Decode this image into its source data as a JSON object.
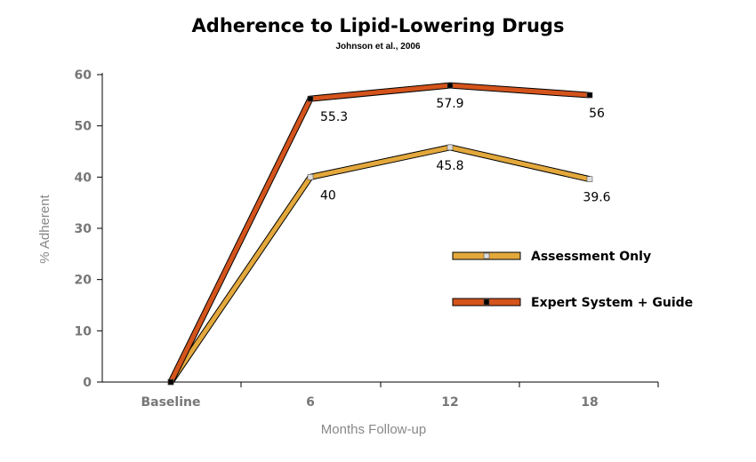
{
  "chart_data": {
    "type": "line",
    "title": "Adherence to Lipid-Lowering Drugs",
    "subtitle": "Johnson et al., 2006",
    "xlabel": "Months Follow-up",
    "ylabel": "% Adherent",
    "categories": [
      "Baseline",
      "6",
      "12",
      "18"
    ],
    "ylim": [
      0,
      60
    ],
    "yticks": [
      "0",
      "10",
      "20",
      "30",
      "40",
      "50",
      "60"
    ],
    "grid": false,
    "legend_position": "right",
    "series": [
      {
        "name": "Assessment Only",
        "values": [
          0,
          40,
          45.8,
          39.6
        ],
        "labels": [
          "",
          "40",
          "45.8",
          "39.6"
        ],
        "color": "#E3A83C",
        "marker_color": "#dddddd"
      },
      {
        "name": "Expert System + Guide",
        "values": [
          0,
          55.3,
          57.9,
          56
        ],
        "labels": [
          "",
          "55.3",
          "57.9",
          "56"
        ],
        "color": "#D4541C",
        "marker_color": "#000000"
      }
    ]
  }
}
